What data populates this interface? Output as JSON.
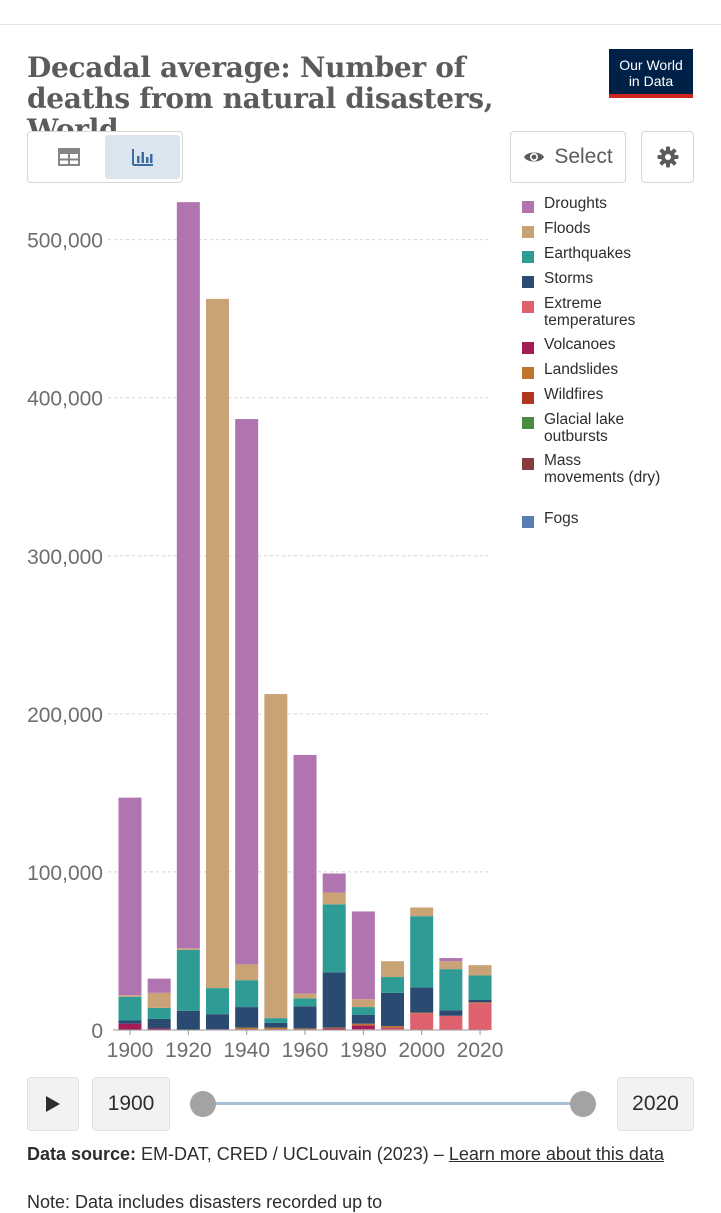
{
  "header": {
    "title": "Decadal average: Number of deaths from natural disasters, World",
    "logo_line1": "Our World",
    "logo_line2": "in Data"
  },
  "controls": {
    "table_icon": "table-icon",
    "chart_icon": "bar-chart-icon",
    "select_label": "Select",
    "select_icon": "eye-icon",
    "settings_icon": "gear-icon"
  },
  "colors": {
    "Droughts": "#b074b0",
    "Floods": "#c9a276",
    "Earthquakes": "#2e9c95",
    "Storms": "#2a4a72",
    "Extreme temperatures": "#e0616e",
    "Volcanoes": "#a51c5a",
    "Landslides": "#c1772b",
    "Wildfires": "#b0381e",
    "Glacial lake outbursts": "#4a8a45",
    "Mass movements (dry)": "#8a3b40",
    "Fogs": "#5c7db1"
  },
  "chart_data": {
    "type": "bar",
    "stacked": true,
    "title": "Decadal average: Number of deaths from natural disasters, World",
    "x": [
      1900,
      1910,
      1920,
      1930,
      1940,
      1950,
      1960,
      1970,
      1980,
      1990,
      2000,
      2010,
      2020
    ],
    "x_tick_labels": [
      "1900",
      "1920",
      "1940",
      "1960",
      "1980",
      "2000",
      "2020"
    ],
    "y_tick_labels": [
      "0",
      "100,000",
      "200,000",
      "300,000",
      "400,000",
      "500,000"
    ],
    "ylim": [
      0,
      520000
    ],
    "grid": "horizontal dashed",
    "legend_position": "right",
    "series": [
      {
        "name": "Extreme temperatures",
        "values": [
          0,
          0,
          0,
          0,
          0,
          0,
          0,
          0,
          500,
          1000,
          10500,
          9000,
          17000
        ]
      },
      {
        "name": "Volcanoes",
        "values": [
          4000,
          1000,
          200,
          500,
          500,
          500,
          500,
          1000,
          2500,
          500,
          0,
          0,
          0
        ]
      },
      {
        "name": "Landslides",
        "values": [
          0,
          0,
          0,
          0,
          1000,
          1000,
          500,
          500,
          1000,
          1000,
          500,
          0,
          500
        ]
      },
      {
        "name": "Storms",
        "values": [
          2000,
          6000,
          12000,
          9500,
          13000,
          3000,
          14000,
          35000,
          5500,
          21000,
          16000,
          3500,
          1500
        ]
      },
      {
        "name": "Earthquakes",
        "values": [
          15000,
          7000,
          38500,
          16500,
          17000,
          3000,
          5000,
          43000,
          5000,
          10000,
          45000,
          26000,
          15500
        ]
      },
      {
        "name": "Floods",
        "values": [
          1000,
          9500,
          1000,
          436000,
          10000,
          205000,
          3000,
          7500,
          5000,
          10000,
          5500,
          5000,
          6500
        ]
      },
      {
        "name": "Droughts",
        "values": [
          125000,
          9000,
          472000,
          0,
          345000,
          0,
          151000,
          12000,
          55500,
          0,
          0,
          2000,
          0
        ]
      },
      {
        "name": "Wildfires",
        "values": [
          0,
          0,
          0,
          0,
          0,
          0,
          0,
          0,
          0,
          0,
          0,
          0,
          0
        ]
      },
      {
        "name": "Glacial lake outbursts",
        "values": [
          0,
          0,
          0,
          0,
          0,
          0,
          0,
          0,
          0,
          0,
          0,
          0,
          0
        ]
      },
      {
        "name": "Mass movements (dry)",
        "values": [
          0,
          0,
          0,
          0,
          0,
          0,
          0,
          0,
          0,
          0,
          0,
          0,
          0
        ]
      },
      {
        "name": "Fogs",
        "values": [
          0,
          0,
          0,
          0,
          0,
          0,
          0,
          0,
          0,
          0,
          0,
          0,
          0
        ]
      }
    ],
    "legend": [
      "Droughts",
      "Floods",
      "Earthquakes",
      "Storms",
      "Extreme temperatures",
      "Volcanoes",
      "Landslides",
      "Wildfires",
      "Glacial lake outbursts",
      "Mass movements (dry)",
      "Fogs"
    ]
  },
  "timeline": {
    "play_icon": "play-icon",
    "start_year": "1900",
    "end_year": "2020"
  },
  "footer": {
    "source_label": "Data source:",
    "source_text": " EM-DAT, CRED / UCLouvain (2023) – ",
    "source_link": "Learn more about this data",
    "note_text": "Note: Data includes disasters recorded up to"
  }
}
